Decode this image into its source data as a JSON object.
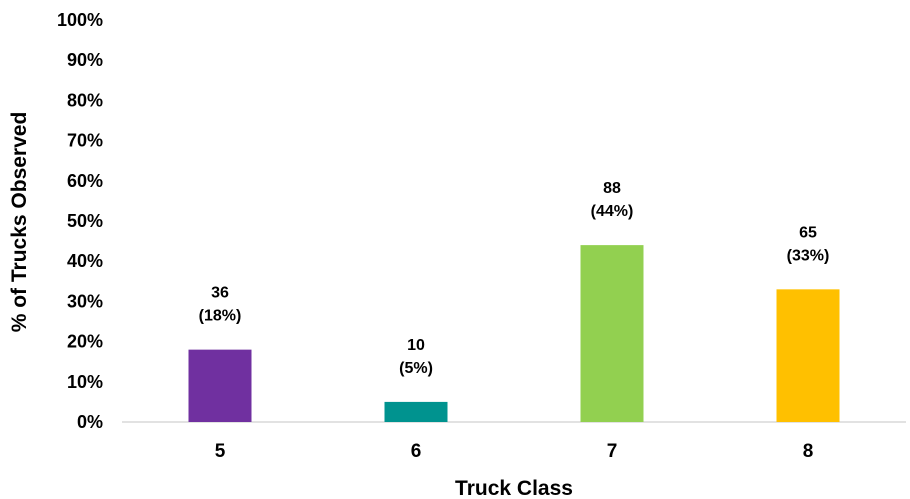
{
  "chart_data": {
    "type": "bar",
    "categories": [
      "5",
      "6",
      "7",
      "8"
    ],
    "values": [
      18,
      5,
      44,
      33
    ],
    "counts": [
      36,
      10,
      88,
      65
    ],
    "data_labels": [
      {
        "count": "36",
        "pct": "(18%)"
      },
      {
        "count": "10",
        "pct": "(5%)"
      },
      {
        "count": "88",
        "pct": "(44%)"
      },
      {
        "count": "65",
        "pct": "(33%)"
      }
    ],
    "colors": [
      "#7030A0",
      "#00938F",
      "#92D050",
      "#FFC000"
    ],
    "xlabel": "Truck Class",
    "ylabel": "% of Trucks Observed",
    "ylim": [
      0,
      100
    ],
    "yticks": [
      "0%",
      "10%",
      "20%",
      "30%",
      "40%",
      "50%",
      "60%",
      "70%",
      "80%",
      "90%",
      "100%"
    ],
    "grid": false,
    "legend": "none"
  }
}
